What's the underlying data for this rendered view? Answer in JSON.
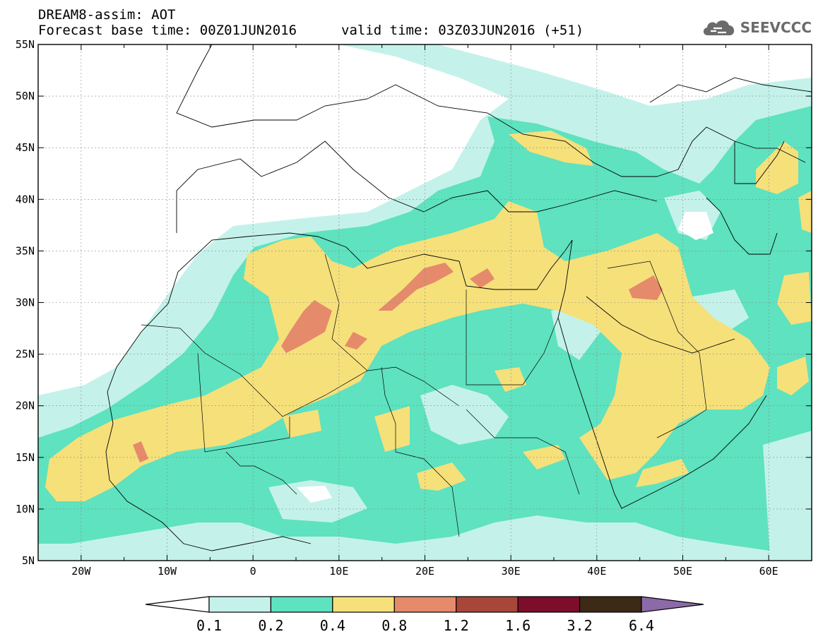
{
  "title_line1": "DREAM8-assim: AOT",
  "title_line2": "Forecast base time: 00Z01JUN2016",
  "valid_time": "valid time: 03Z03JUN2016 (+51)",
  "logo_text": "SEEVCCC",
  "latitude_labels": [
    "55N",
    "50N",
    "45N",
    "40N",
    "35N",
    "30N",
    "25N",
    "20N",
    "15N",
    "10N",
    "5N"
  ],
  "longitude_labels": [
    "20W",
    "10W",
    "0",
    "10E",
    "20E",
    "30E",
    "40E",
    "50E",
    "60E"
  ],
  "colorbar": {
    "levels": [
      "0.1",
      "0.2",
      "0.4",
      "0.8",
      "1.2",
      "1.6",
      "3.2",
      "6.4"
    ],
    "colors": [
      "#ffffff",
      "#c4f2ea",
      "#5ee2bf",
      "#f6e07a",
      "#e58a6b",
      "#a8463a",
      "#7c0d2b",
      "#3c2a17",
      "#8c6aa8"
    ]
  },
  "field_colors": {
    "level_0_1": "#c4f2ea",
    "level_0_2": "#5ee2bf",
    "level_0_4": "#f6e07a",
    "level_0_8": "#e58a6b"
  }
}
